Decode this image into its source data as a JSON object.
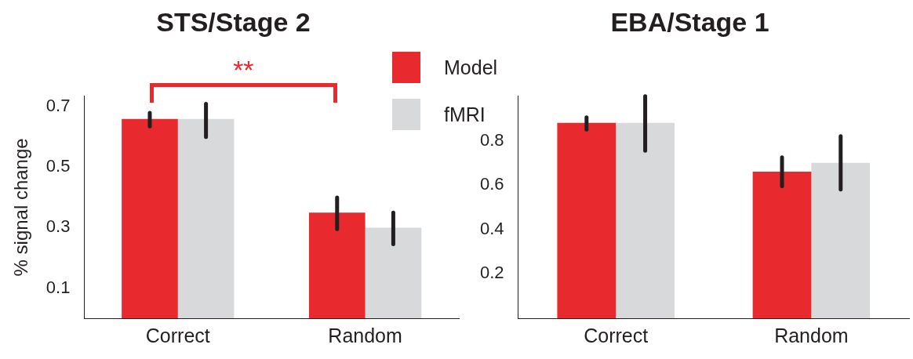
{
  "chart_data": [
    {
      "type": "bar",
      "title": "STS/Stage 2",
      "ylabel": "% signal change",
      "categories": [
        "Correct",
        "Random"
      ],
      "series": [
        {
          "name": "Model",
          "color": "#e8292e",
          "values": [
            0.66,
            0.35
          ],
          "errors": [
            [
              0.635,
              0.68
            ],
            [
              0.295,
              0.4
            ]
          ]
        },
        {
          "name": "fMRI",
          "color": "#d8d9db",
          "values": [
            0.66,
            0.3
          ],
          "errors": [
            [
              0.6,
              0.71
            ],
            [
              0.245,
              0.35
            ]
          ]
        }
      ],
      "ylim": [
        0,
        0.735
      ],
      "yticks": [
        0.1,
        0.3,
        0.5,
        0.7
      ],
      "grid": false,
      "legend": "top right",
      "annotations": [
        "**"
      ]
    },
    {
      "type": "bar",
      "title": "EBA/Stage 1",
      "categories": [
        "Correct",
        "Random"
      ],
      "series": [
        {
          "color": "#e8292e",
          "values": [
            0.88,
            0.66
          ],
          "errors": [
            [
              0.85,
              0.905
            ],
            [
              0.595,
              0.725
            ]
          ]
        },
        {
          "color": "#d8d9db",
          "values": [
            0.88,
            0.7
          ],
          "errors": [
            [
              0.755,
              1.0
            ],
            [
              0.58,
              0.82
            ]
          ]
        }
      ],
      "ylim": [
        0,
        1.0
      ],
      "yticks": [
        0.2,
        0.4,
        0.6,
        0.8
      ],
      "grid": false,
      "legend": false
    }
  ]
}
